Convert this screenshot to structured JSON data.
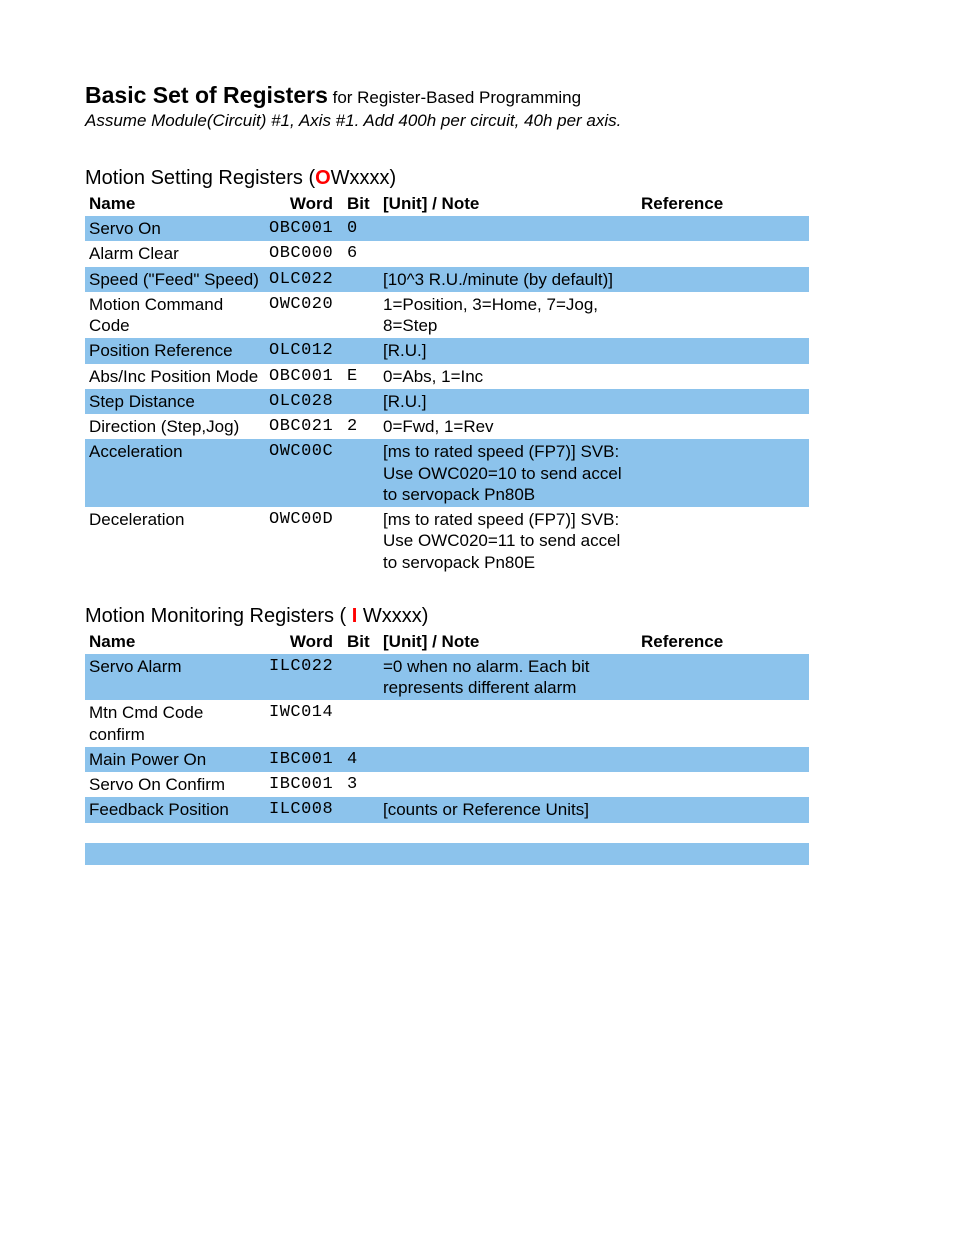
{
  "colors": {
    "row_highlight": "#8cc3ec",
    "accent_red": "#ff0000",
    "text": "#000000",
    "background": "#ffffff"
  },
  "title": {
    "main": "Basic Set of Registers",
    "sub": "  for Register-Based Programming"
  },
  "assume": "Assume Module(Circuit) #1, Axis #1.  Add 400h per circuit, 40h per axis.",
  "table1": {
    "heading_pre": "Motion Setting Registers (",
    "heading_letter": "O",
    "heading_post": "Wxxxx)",
    "columns": {
      "name": "Name",
      "word": "Word",
      "bit": "Bit",
      "note": "[Unit] / Note",
      "ref": "Reference"
    },
    "rows": [
      {
        "name": "Servo On",
        "word": "OBC001",
        "bit": "0",
        "note": "",
        "ref": "",
        "hl": true
      },
      {
        "name": "Alarm Clear",
        "word": "OBC000",
        "bit": "6",
        "note": "",
        "ref": "",
        "hl": false
      },
      {
        "name": "Speed (\"Feed\" Speed)",
        "word": "OLC022",
        "bit": "",
        "note": "[10^3 R.U./minute (by default)]",
        "ref": "",
        "hl": true
      },
      {
        "name": "Motion Command Code",
        "word": "OWC020",
        "bit": "",
        "note": "1=Position, 3=Home, 7=Jog, 8=Step",
        "ref": "",
        "hl": false
      },
      {
        "name": "Position Reference",
        "word": "OLC012",
        "bit": "",
        "note": "[R.U.]",
        "ref": "",
        "hl": true
      },
      {
        "name": "Abs/Inc Position Mode",
        "word": "OBC001",
        "bit": "E",
        "note": "0=Abs, 1=Inc",
        "ref": "",
        "hl": false
      },
      {
        "name": "Step Distance",
        "word": "OLC028",
        "bit": "",
        "note": "[R.U.]",
        "ref": "",
        "hl": true
      },
      {
        "name": "Direction (Step,Jog)",
        "word": "OBC021",
        "bit": "2",
        "note": "0=Fwd, 1=Rev",
        "ref": "",
        "hl": false
      },
      {
        "name": "Acceleration",
        "word": "OWC00C",
        "bit": "",
        "note": "[ms to rated speed (FP7)]  SVB: Use OWC020=10 to send accel to servopack Pn80B",
        "ref": "",
        "hl": true
      },
      {
        "name": "Deceleration",
        "word": "OWC00D",
        "bit": "",
        "note": "[ms to rated speed (FP7)]  SVB: Use OWC020=11 to send accel to servopack Pn80E",
        "ref": "",
        "hl": false
      }
    ]
  },
  "table2": {
    "heading_pre": "Motion Monitoring Registers ( ",
    "heading_letter": "I",
    "heading_post": " Wxxxx)",
    "columns": {
      "name": "Name",
      "word": "Word",
      "bit": "Bit",
      "note": "[Unit] / Note",
      "ref": "Reference"
    },
    "rows": [
      {
        "name": "Servo Alarm",
        "word": "ILC022",
        "bit": "",
        "note": "=0 when no alarm.  Each bit represents different alarm",
        "ref": "",
        "hl": true
      },
      {
        "name": "Mtn Cmd Code confirm",
        "word": "IWC014",
        "bit": "",
        "note": "",
        "ref": "",
        "hl": false
      },
      {
        "name": "Main Power On",
        "word": "IBC001",
        "bit": "4",
        "note": "",
        "ref": "",
        "hl": true
      },
      {
        "name": "Servo On Confirm",
        "word": "IBC001",
        "bit": "3",
        "note": "",
        "ref": "",
        "hl": false
      },
      {
        "name": "Feedback Position",
        "word": "ILC008",
        "bit": "",
        "note": "[counts or Reference Units]",
        "ref": "",
        "hl": true
      }
    ]
  }
}
